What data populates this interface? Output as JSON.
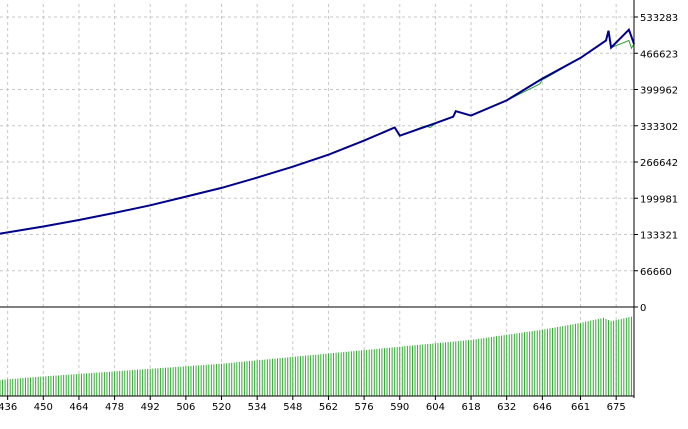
{
  "chart_data": {
    "type": "line",
    "colors": {
      "balance": "#00008b",
      "equity": "#2e9b2e",
      "volume": "#34a834",
      "grid": "#c8c8c8",
      "axis": "#000000"
    },
    "upper_y_ticks": [
      "533283",
      "466623",
      "399962",
      "333302",
      "266642",
      "199981",
      "133321",
      "66660",
      "0"
    ],
    "upper_ylim": [
      0,
      533283
    ],
    "x_ticks": [
      "436",
      "450",
      "464",
      "478",
      "492",
      "506",
      "520",
      "534",
      "548",
      "562",
      "576",
      "590",
      "604",
      "618",
      "632",
      "646",
      "661",
      "675"
    ],
    "xlim": [
      433,
      682
    ],
    "grid": true,
    "series": [
      {
        "x": [
          433,
          450,
          464,
          478,
          492,
          506,
          520,
          534,
          548,
          562,
          576,
          587,
          588,
          590,
          604,
          611,
          612,
          618,
          632,
          646,
          661,
          671,
          672,
          673,
          680,
          682
        ],
        "y": [
          135000,
          148000,
          160000,
          173000,
          187000,
          203000,
          219000,
          238000,
          258000,
          280000,
          306000,
          328000,
          330000,
          315000,
          338000,
          350000,
          360000,
          352000,
          380000,
          420000,
          458000,
          490000,
          508000,
          477000,
          510000,
          484000
        ]
      },
      {
        "x": [
          433,
          450,
          464,
          478,
          492,
          506,
          520,
          534,
          548,
          562,
          576,
          587,
          588,
          590,
          600,
          602,
          604,
          608,
          611,
          612,
          618,
          632,
          645,
          646,
          647,
          661,
          671,
          672,
          673,
          680,
          681,
          682
        ],
        "y": [
          135000,
          148000,
          160000,
          173000,
          187000,
          203000,
          219000,
          238000,
          258000,
          280000,
          306000,
          328000,
          330000,
          315000,
          333000,
          330000,
          338000,
          345000,
          350000,
          360000,
          352000,
          380000,
          410000,
          418000,
          420000,
          458000,
          490000,
          508000,
          477000,
          490000,
          476000,
          484000
        ]
      },
      {
        "x": [
          433,
          450,
          464,
          478,
          492,
          506,
          520,
          534,
          548,
          562,
          576,
          590,
          604,
          618,
          632,
          646,
          661,
          670,
          673,
          682
        ],
        "y": [
          0.19,
          0.23,
          0.26,
          0.29,
          0.32,
          0.35,
          0.38,
          0.42,
          0.46,
          0.5,
          0.54,
          0.58,
          0.62,
          0.66,
          0.72,
          0.78,
          0.86,
          0.92,
          0.88,
          0.94
        ]
      }
    ]
  }
}
